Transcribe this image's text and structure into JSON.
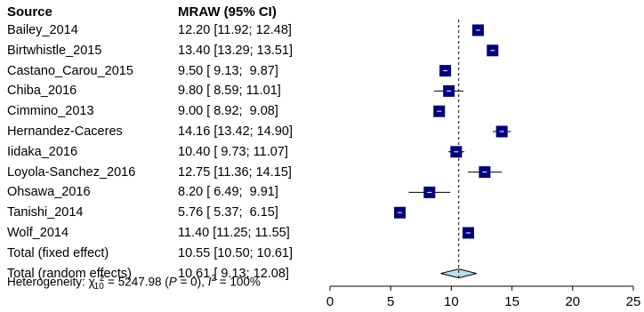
{
  "header": {
    "source_label": "Source",
    "effect_label": "MRAW (95% CI)"
  },
  "footer": {
    "heterogeneity_prefix": "Heterogeneity: ",
    "chi_symbol": "χ",
    "chi_df": "10",
    "chi_power": "2",
    "chi_value": " = 5247.98 (",
    "p_symbol": "P",
    "p_rest": " = 0), ",
    "i_symbol": "I",
    "i_power": "2",
    "i_value": " = 100%"
  },
  "colors": {
    "square": "#000080",
    "diamond": "#b8e0ea",
    "line": "#000000"
  },
  "chart_data": {
    "type": "forest",
    "xlim": [
      0,
      25
    ],
    "xticks": [
      "0",
      "5",
      "10",
      "15",
      "20",
      "25"
    ],
    "reference_line": 10.61,
    "studies": [
      {
        "name": "Bailey_2014",
        "mean": 12.2,
        "lower": 11.92,
        "upper": 12.48,
        "ci_text": "12.20 [11.92; 12.48]"
      },
      {
        "name": "Birtwhistle_2015",
        "mean": 13.4,
        "lower": 13.29,
        "upper": 13.51,
        "ci_text": "13.40 [13.29; 13.51]"
      },
      {
        "name": "Castano_Carou_2015",
        "mean": 9.5,
        "lower": 9.13,
        "upper": 9.87,
        "ci_text": "9.50 [ 9.13;  9.87]"
      },
      {
        "name": "Chiba_2016",
        "mean": 9.8,
        "lower": 8.59,
        "upper": 11.01,
        "ci_text": "9.80 [ 8.59; 11.01]"
      },
      {
        "name": "Cimmino_2013",
        "mean": 9.0,
        "lower": 8.92,
        "upper": 9.08,
        "ci_text": "9.00 [ 8.92;  9.08]"
      },
      {
        "name": "Hernandez-Caceres",
        "mean": 14.16,
        "lower": 13.42,
        "upper": 14.9,
        "ci_text": "14.16 [13.42; 14.90]"
      },
      {
        "name": "Iidaka_2016",
        "mean": 10.4,
        "lower": 9.73,
        "upper": 11.07,
        "ci_text": "10.40 [ 9.73; 11.07]"
      },
      {
        "name": "Loyola-Sanchez_2016",
        "mean": 12.75,
        "lower": 11.36,
        "upper": 14.15,
        "ci_text": "12.75 [11.36; 14.15]"
      },
      {
        "name": "Ohsawa_2016",
        "mean": 8.2,
        "lower": 6.49,
        "upper": 9.91,
        "ci_text": "8.20 [ 6.49;  9.91]"
      },
      {
        "name": "Tanishi_2014",
        "mean": 5.76,
        "lower": 5.37,
        "upper": 6.15,
        "ci_text": "5.76 [ 5.37;  6.15]"
      },
      {
        "name": "Wolf_2014",
        "mean": 11.4,
        "lower": 11.25,
        "upper": 11.55,
        "ci_text": "11.40 [11.25; 11.55]"
      }
    ],
    "totals": [
      {
        "name": "Total (fixed effect)",
        "mean": 10.55,
        "lower": 10.5,
        "upper": 10.61,
        "ci_text": "10.55 [10.50; 10.61]",
        "shape": "none"
      },
      {
        "name": "Total (random effects)",
        "mean": 10.61,
        "lower": 9.13,
        "upper": 12.08,
        "ci_text": "10.61 [ 9.13; 12.08]",
        "shape": "diamond"
      }
    ]
  }
}
